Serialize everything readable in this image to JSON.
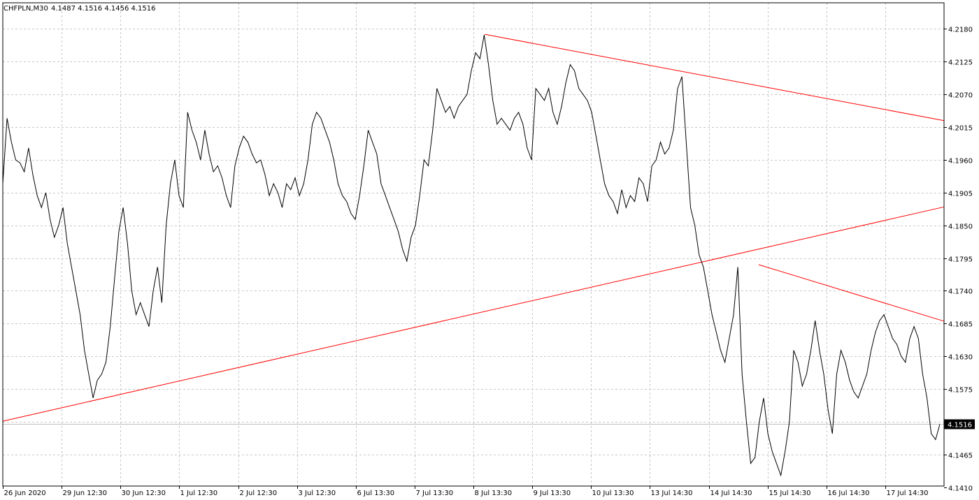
{
  "header": {
    "symbol": "CHFPLN,M30",
    "ohlc": "4.1487 4.1516 4.1456 4.1516"
  },
  "colors": {
    "background": "#ffffff",
    "grid": "#c8c8c8",
    "price_line": "#000000",
    "trendline": "#ff0000",
    "price_tag_bg": "#000000",
    "price_tag_text": "#ffffff"
  },
  "current_price_label": "4.1516",
  "chart_data": {
    "type": "line",
    "title": "CHFPLN,M30",
    "xlabel": "",
    "ylabel": "",
    "grid": true,
    "ylim": [
      4.1412,
      4.2224
    ],
    "y_ticks": [
      "4.2180",
      "4.2125",
      "4.2070",
      "4.2015",
      "4.1960",
      "4.1905",
      "4.1850",
      "4.1795",
      "4.1740",
      "4.1685",
      "4.1630",
      "4.1575",
      "4.1520",
      "4.1465",
      "4.1410"
    ],
    "x_ticks": [
      "26 Jun 2020",
      "29 Jun 12:30",
      "30 Jun 12:30",
      "1 Jul 12:30",
      "2 Jul 12:30",
      "3 Jul 12:30",
      "6 Jul 13:30",
      "7 Jul 13:30",
      "8 Jul 13:30",
      "9 Jul 13:30",
      "10 Jul 13:30",
      "13 Jul 14:30",
      "14 Jul 14:30",
      "15 Jul 14:30",
      "16 Jul 14:30",
      "17 Jul 14:30"
    ],
    "series": [
      {
        "values": [
          4.192,
          4.203,
          4.199,
          4.196,
          4.1955,
          4.194,
          4.198,
          4.1935,
          4.19,
          4.188,
          4.1905,
          4.186,
          4.183,
          4.185,
          4.188,
          4.182,
          4.178,
          4.174,
          4.17,
          4.164,
          4.16,
          4.156,
          4.159,
          4.16,
          4.162,
          4.168,
          4.176,
          4.184,
          4.188,
          4.182,
          4.174,
          4.17,
          4.172,
          4.17,
          4.168,
          4.174,
          4.178,
          4.172,
          4.185,
          4.192,
          4.196,
          4.19,
          4.188,
          4.204,
          4.201,
          4.199,
          4.196,
          4.201,
          4.197,
          4.194,
          4.195,
          4.193,
          4.19,
          4.188,
          4.195,
          4.198,
          4.2,
          4.199,
          4.197,
          4.1955,
          4.196,
          4.1935,
          4.19,
          4.192,
          4.1905,
          4.188,
          4.192,
          4.191,
          4.193,
          4.19,
          4.192,
          4.196,
          4.202,
          4.204,
          4.203,
          4.201,
          4.199,
          4.196,
          4.192,
          4.19,
          4.189,
          4.187,
          4.186,
          4.19,
          4.195,
          4.201,
          4.199,
          4.197,
          4.192,
          4.19,
          4.188,
          4.186,
          4.184,
          4.181,
          4.179,
          4.183,
          4.185,
          4.19,
          4.196,
          4.195,
          4.201,
          4.208,
          4.206,
          4.204,
          4.205,
          4.203,
          4.205,
          4.206,
          4.207,
          4.211,
          4.214,
          4.213,
          4.217,
          4.212,
          4.206,
          4.202,
          4.203,
          4.202,
          4.201,
          4.203,
          4.204,
          4.202,
          4.198,
          4.196,
          4.208,
          4.207,
          4.206,
          4.208,
          4.204,
          4.202,
          4.205,
          4.209,
          4.212,
          4.211,
          4.208,
          4.207,
          4.206,
          4.204,
          4.2,
          4.196,
          4.192,
          4.19,
          4.189,
          4.187,
          4.191,
          4.188,
          4.19,
          4.189,
          4.193,
          4.192,
          4.189,
          4.195,
          4.196,
          4.199,
          4.197,
          4.198,
          4.201,
          4.208,
          4.21,
          4.199,
          4.188,
          4.185,
          4.18,
          4.178,
          4.174,
          4.17,
          4.167,
          4.164,
          4.162,
          4.166,
          4.17,
          4.178,
          4.16,
          4.152,
          4.145,
          4.146,
          4.152,
          4.156,
          4.15,
          4.147,
          4.145,
          4.143,
          4.147,
          4.152,
          4.164,
          4.162,
          4.158,
          4.16,
          4.164,
          4.169,
          4.164,
          4.16,
          4.154,
          4.15,
          4.16,
          4.164,
          4.162,
          4.159,
          4.157,
          4.156,
          4.158,
          4.16,
          4.164,
          4.167,
          4.169,
          4.17,
          4.168,
          4.166,
          4.165,
          4.163,
          4.162,
          4.166,
          4.168,
          4.166,
          4.16,
          4.156,
          4.15,
          4.149,
          4.1516
        ]
      }
    ],
    "trendlines": [
      {
        "from": {
          "x": 0.0,
          "y": 4.1521
        },
        "to": {
          "x": 1.0,
          "y": 4.1881
        }
      },
      {
        "from": {
          "x": 0.512,
          "y": 4.2171
        },
        "to": {
          "x": 1.0,
          "y": 4.2026
        }
      },
      {
        "from": {
          "x": 0.803,
          "y": 4.1784
        },
        "to": {
          "x": 1.0,
          "y": 4.1689
        }
      }
    ]
  }
}
